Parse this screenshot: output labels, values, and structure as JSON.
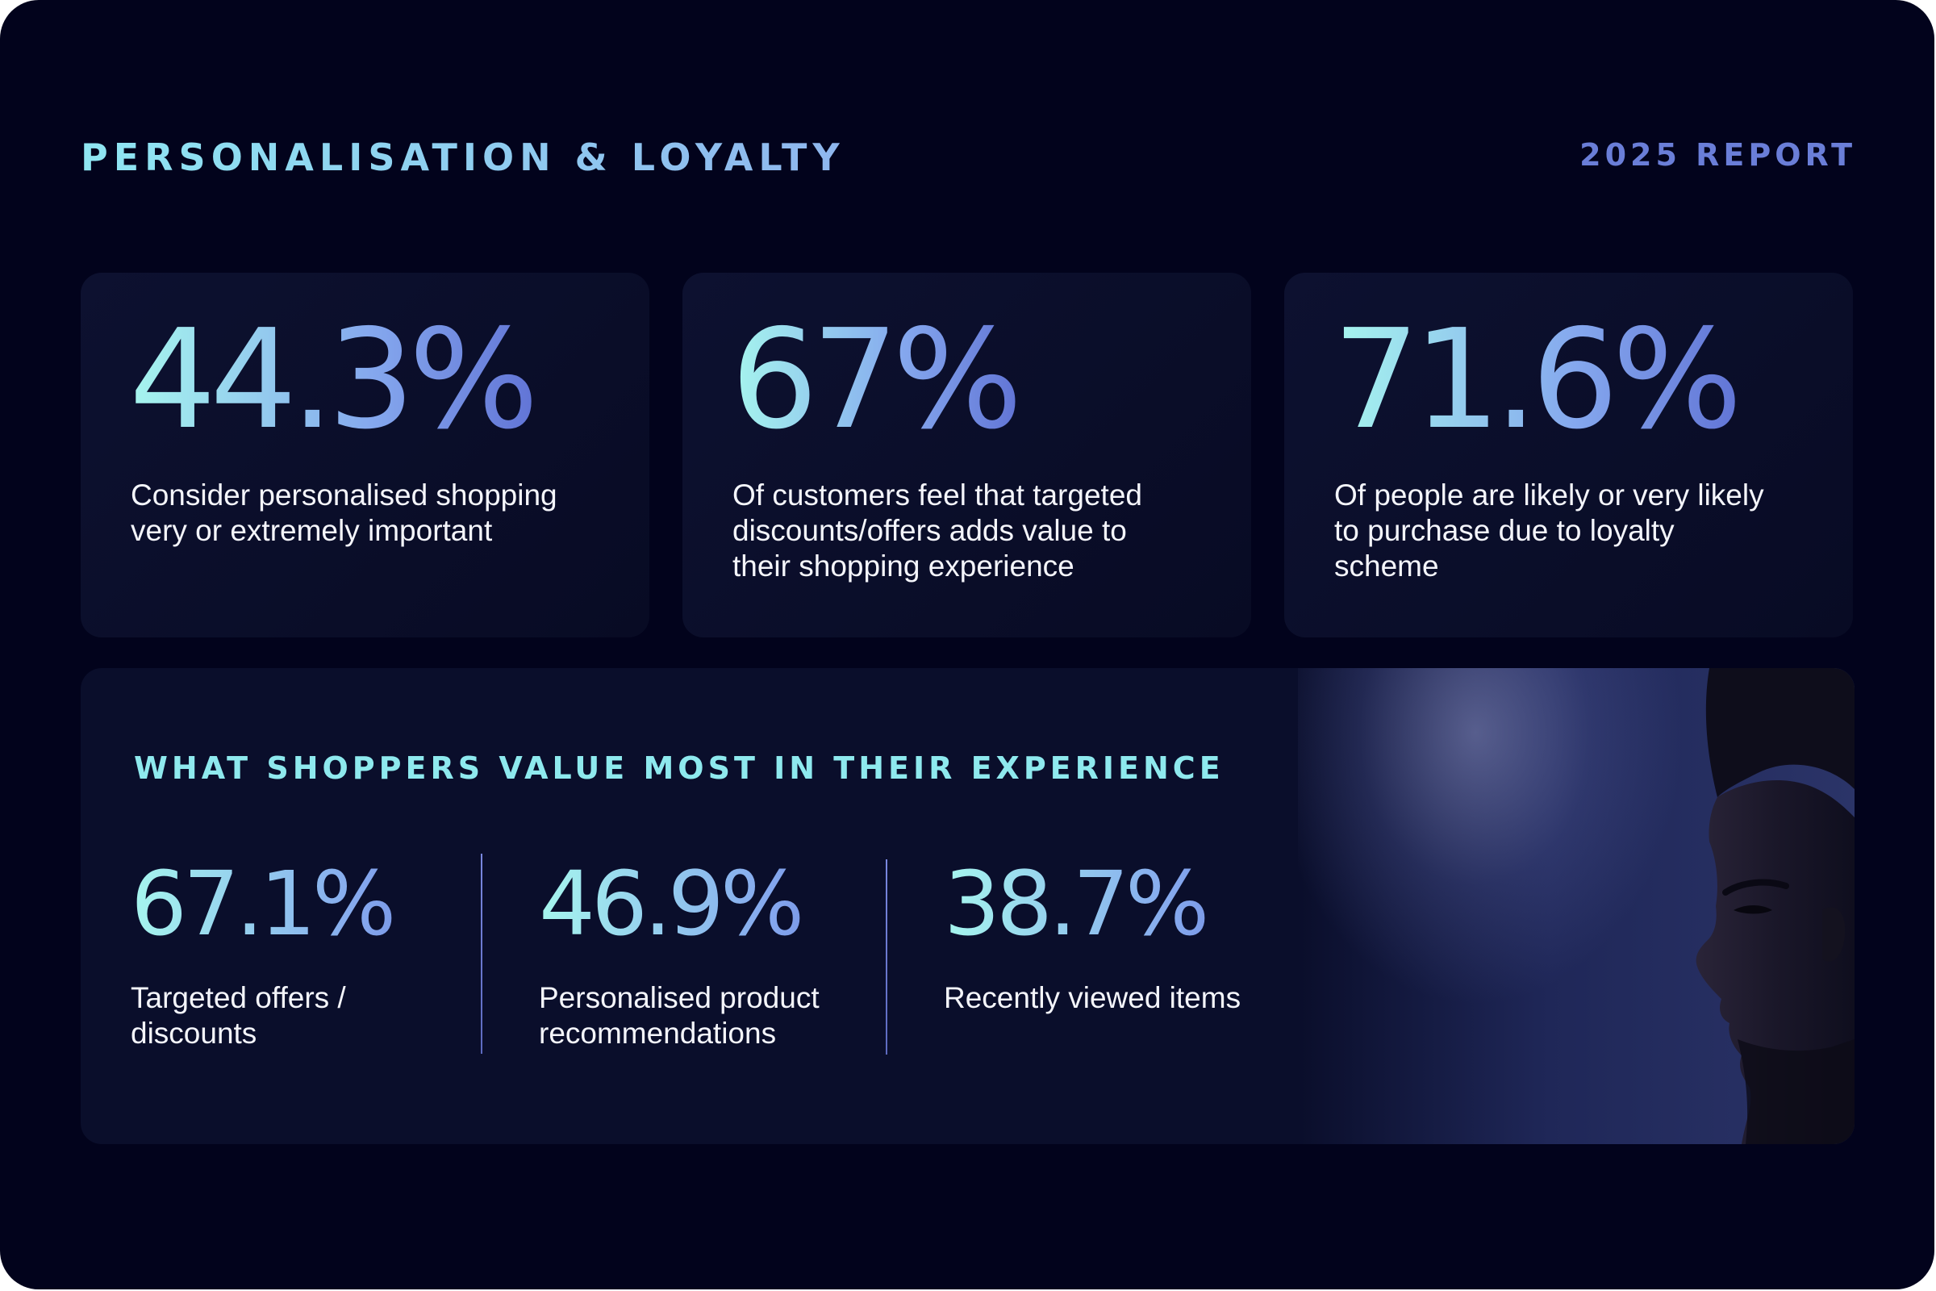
{
  "header": {
    "title": "PERSONALISATION & LOYALTY",
    "report_label": "2025 REPORT"
  },
  "cards": [
    {
      "value": "44.3%",
      "description": "Consider personalised shopping very or extremely important"
    },
    {
      "value": "67%",
      "description": "Of customers feel that targeted discounts/offers adds value to their shopping experience"
    },
    {
      "value": "71.6%",
      "description": "Of people are likely or very likely to purchase due to loyalty scheme"
    }
  ],
  "panel": {
    "heading": "WHAT SHOPPERS VALUE MOST IN THEIR EXPERIENCE",
    "stats": [
      {
        "value": "67.1%",
        "label": "Targeted offers / discounts"
      },
      {
        "value": "46.9%",
        "label": "Personalised product recommendations"
      },
      {
        "value": "38.7%",
        "label": "Recently viewed items"
      }
    ]
  },
  "colors": {
    "background": "#02031c",
    "card": "#0b0f2c",
    "accent_cyan": "#8ee9ee",
    "accent_blue": "#6a7ed8"
  }
}
